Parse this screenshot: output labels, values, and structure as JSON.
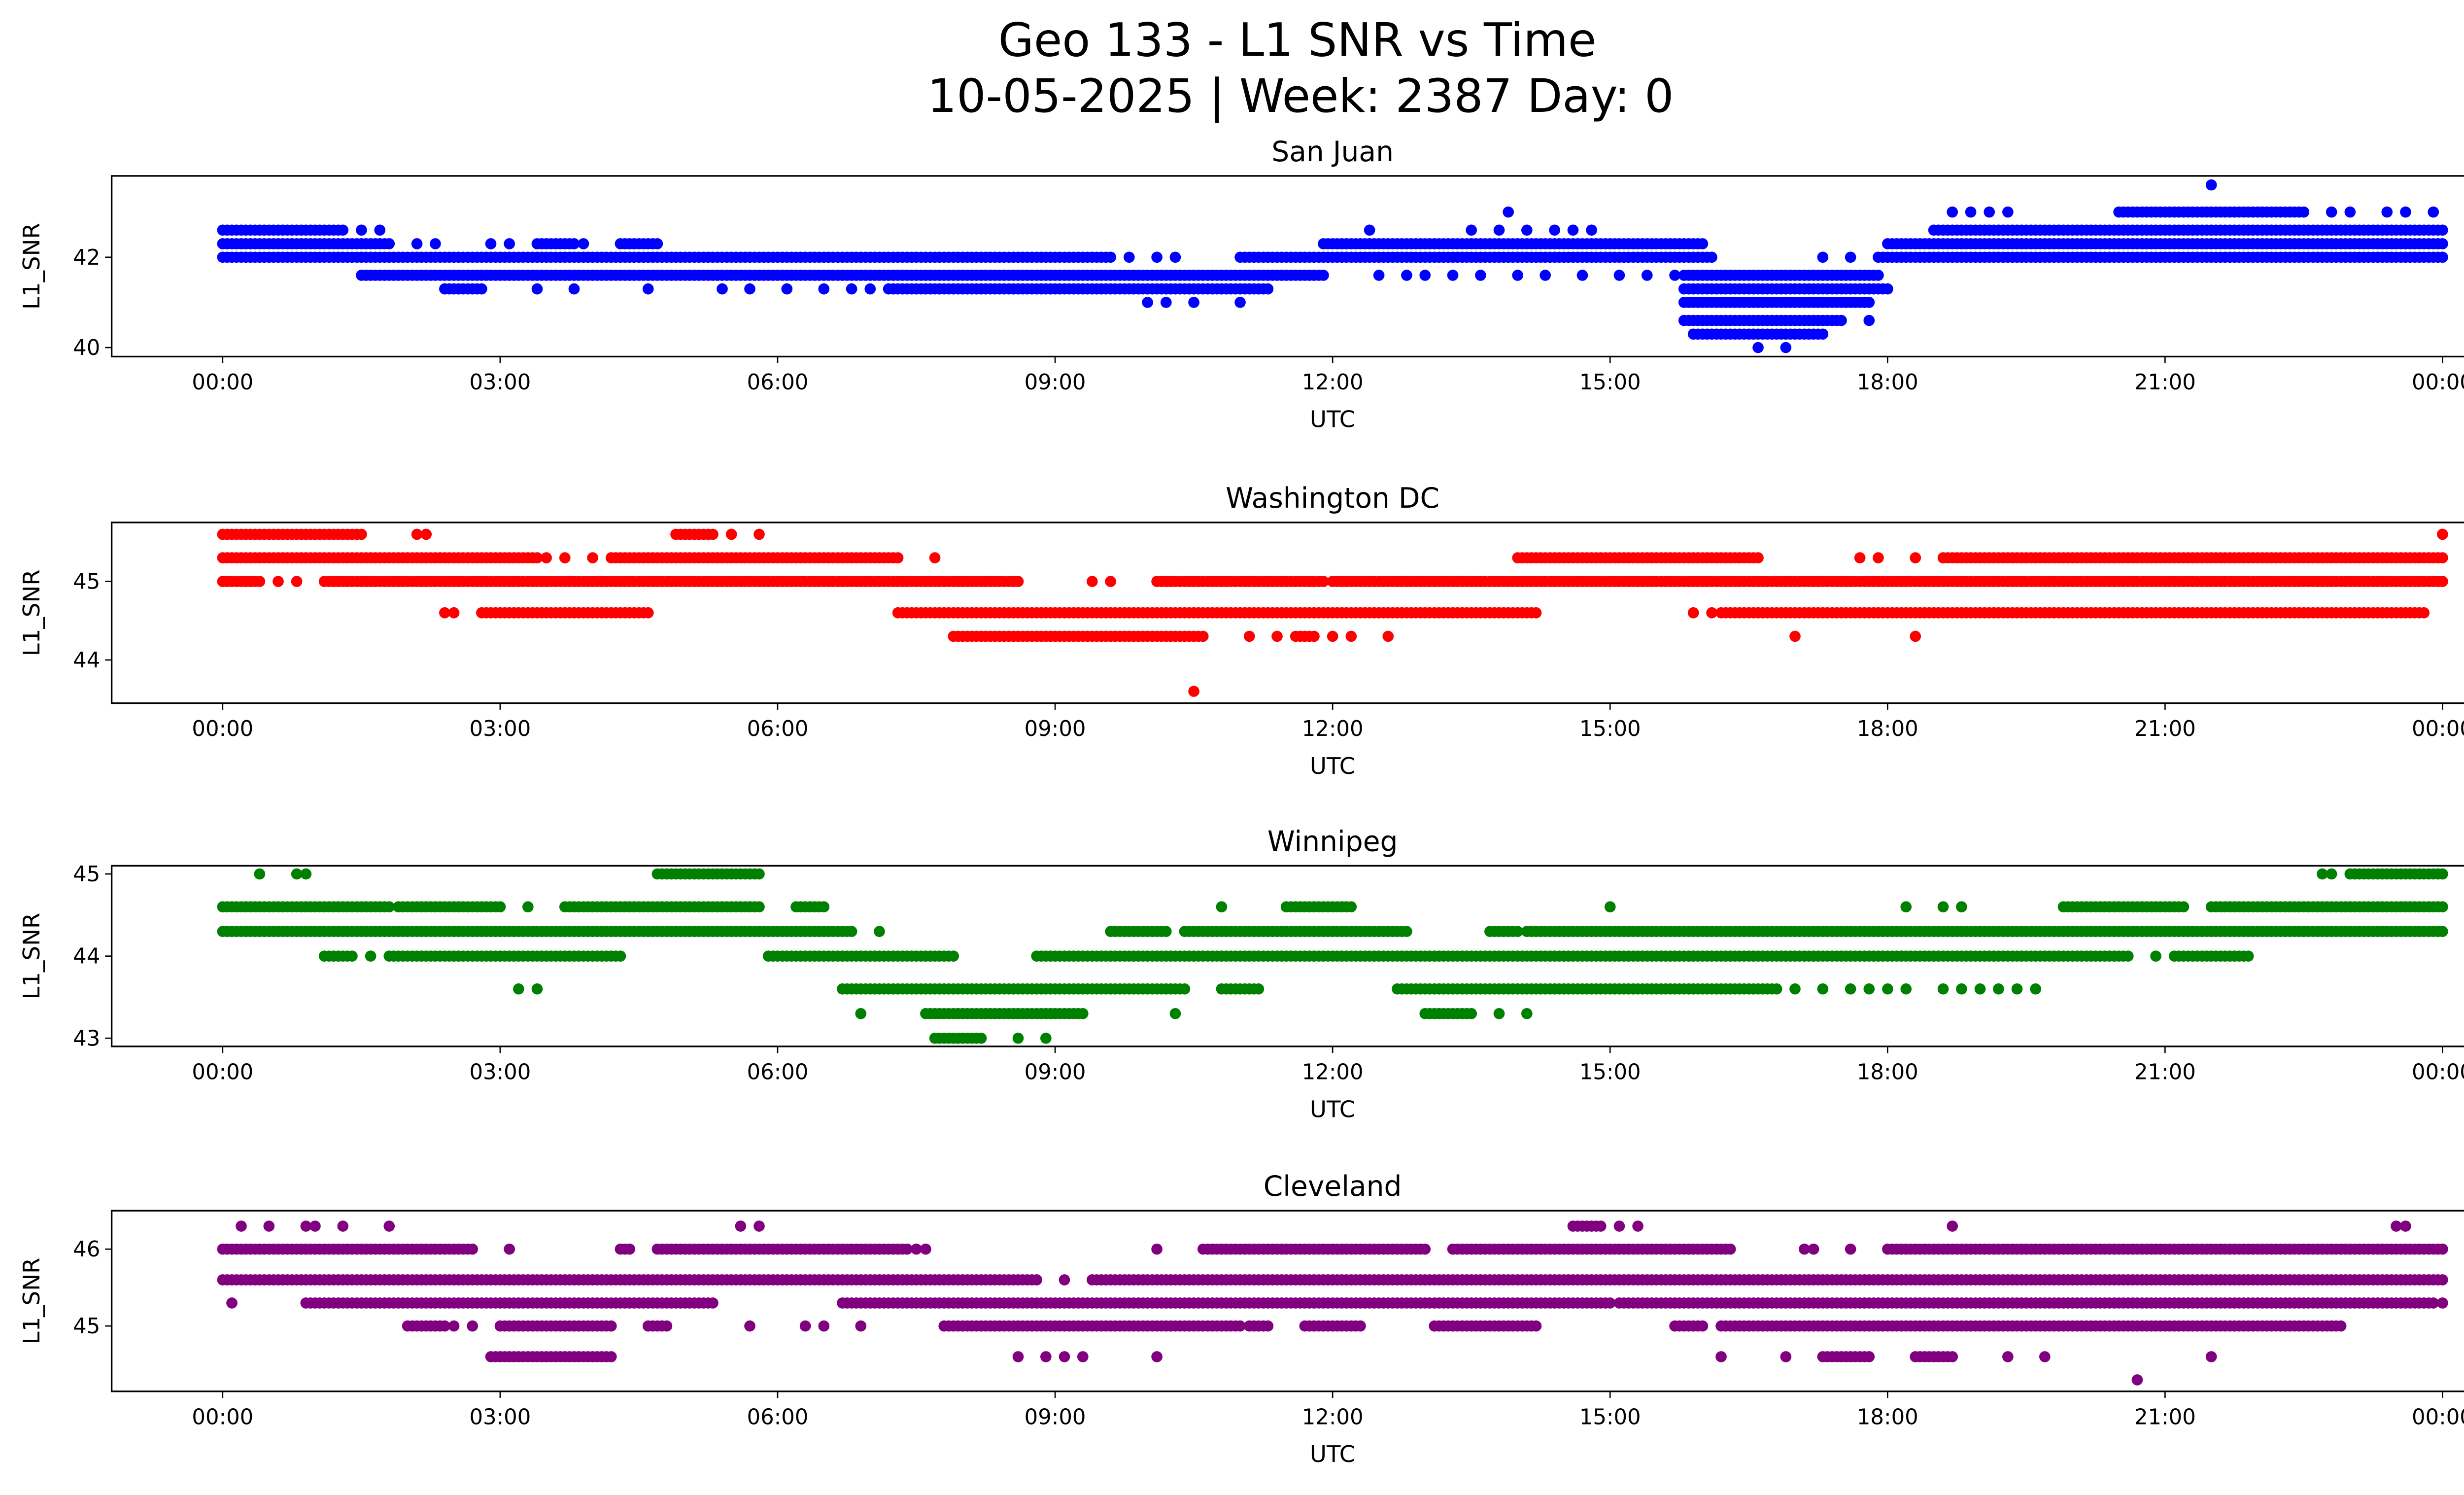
{
  "chart_data": {
    "type": "scatter",
    "title_line1": "Geo 133 - L1 SNR vs Time",
    "title_line2": "10-05-2025 | Week: 2387 Day: 0",
    "xlabel": "UTC",
    "ylabel": "L1_SNR",
    "x_units": "hours since 00:00 UTC",
    "xlim": [
      -1.2,
      25.2
    ],
    "x_ticks": [
      0,
      3,
      6,
      9,
      12,
      15,
      18,
      21,
      24
    ],
    "x_tick_labels": [
      "00:00",
      "03:00",
      "06:00",
      "09:00",
      "12:00",
      "15:00",
      "18:00",
      "21:00",
      "00:00"
    ],
    "subplots": [
      {
        "title": "San Juan",
        "color": "#0000ff",
        "ylim": [
          39.8,
          43.8
        ],
        "y_ticks": [
          40,
          42
        ],
        "y_tick_labels": [
          "40",
          "42"
        ],
        "levels": [
          {
            "y": 43.6,
            "dense": [],
            "points": [
              21.5
            ]
          },
          {
            "y": 43.0,
            "dense": [
              [
                20.5,
                22.5
              ]
            ],
            "points": [
              13.9,
              18.7,
              18.9,
              19.1,
              19.3,
              22.8,
              23.0,
              23.4,
              23.6,
              23.9
            ]
          },
          {
            "y": 42.6,
            "dense": [
              [
                0,
                1.3
              ],
              [
                18.5,
                24
              ]
            ],
            "points": [
              1.5,
              1.7,
              12.4,
              13.5,
              13.8,
              14.1,
              14.4,
              14.6,
              14.8
            ]
          },
          {
            "y": 42.3,
            "dense": [
              [
                0,
                1.8
              ],
              [
                3.4,
                3.8
              ],
              [
                4.3,
                4.7
              ],
              [
                11.9,
                16.0
              ],
              [
                18.0,
                24
              ]
            ],
            "points": [
              2.1,
              2.3,
              2.9,
              3.1,
              3.9
            ]
          },
          {
            "y": 42.0,
            "dense": [
              [
                0,
                9.6
              ],
              [
                11.0,
                16.1
              ],
              [
                17.9,
                24
              ]
            ],
            "points": [
              9.8,
              10.1,
              10.3,
              17.3,
              17.6
            ]
          },
          {
            "y": 41.6,
            "dense": [
              [
                1.5,
                11.9
              ],
              [
                15.8,
                17.9
              ]
            ],
            "points": [
              12.5,
              12.8,
              13.0,
              13.3,
              13.6,
              14.0,
              14.3,
              14.7,
              15.1,
              15.4,
              15.7
            ]
          },
          {
            "y": 41.3,
            "dense": [
              [
                2.4,
                2.8
              ],
              [
                7.2,
                11.3
              ],
              [
                15.8,
                18.0
              ]
            ],
            "points": [
              4.6,
              5.4,
              5.7,
              6.1,
              6.5,
              6.8,
              7.0,
              3.4,
              3.8
            ]
          },
          {
            "y": 41.0,
            "dense": [
              [
                15.8,
                17.8
              ]
            ],
            "points": [
              10.0,
              10.2,
              10.5,
              11.0
            ]
          },
          {
            "y": 40.6,
            "dense": [
              [
                15.8,
                17.5
              ]
            ],
            "points": [
              17.8
            ]
          },
          {
            "y": 40.3,
            "dense": [
              [
                15.9,
                17.3
              ]
            ],
            "points": []
          },
          {
            "y": 40.0,
            "dense": [],
            "points": [
              16.6,
              16.9
            ]
          }
        ]
      },
      {
        "title": "Washington DC",
        "color": "#ff0000",
        "ylim": [
          43.45,
          45.75
        ],
        "y_ticks": [
          44,
          45
        ],
        "y_tick_labels": [
          "44",
          "45"
        ],
        "levels": [
          {
            "y": 45.6,
            "dense": [
              [
                0,
                1.5
              ],
              [
                4.9,
                5.3
              ]
            ],
            "points": [
              2.1,
              2.2,
              5.5,
              5.8,
              24.0
            ]
          },
          {
            "y": 45.3,
            "dense": [
              [
                0,
                3.4
              ],
              [
                4.2,
                7.3
              ],
              [
                14.0,
                16.6
              ],
              [
                18.6,
                24
              ]
            ],
            "points": [
              3.5,
              3.7,
              4.0,
              7.7,
              17.7,
              17.9,
              18.3
            ]
          },
          {
            "y": 45.0,
            "dense": [
              [
                0,
                0.4
              ],
              [
                1.1,
                8.6
              ],
              [
                10.1,
                11.9
              ],
              [
                12.0,
                24
              ]
            ],
            "points": [
              0.6,
              0.8,
              9.4,
              9.6
            ]
          },
          {
            "y": 44.6,
            "dense": [
              [
                2.8,
                4.6
              ],
              [
                7.3,
                14.2
              ],
              [
                16.2,
                23.8
              ]
            ],
            "points": [
              2.4,
              2.5,
              15.9,
              16.1
            ]
          },
          {
            "y": 44.3,
            "dense": [
              [
                7.9,
                10.6
              ],
              [
                11.6,
                11.8
              ]
            ],
            "points": [
              11.1,
              11.4,
              12.0,
              12.2,
              12.6,
              17.0,
              18.3
            ]
          },
          {
            "y": 43.6,
            "dense": [],
            "points": [
              10.5
            ]
          }
        ]
      },
      {
        "title": "Winnipeg",
        "color": "#008000",
        "ylim": [
          42.9,
          45.1
        ],
        "y_ticks": [
          43,
          44,
          45
        ],
        "y_tick_labels": [
          "43",
          "44",
          "45"
        ],
        "levels": [
          {
            "y": 45.0,
            "dense": [
              [
                4.7,
                5.8
              ],
              [
                23.0,
                24
              ]
            ],
            "points": [
              0.4,
              0.8,
              0.9,
              22.7,
              22.8
            ]
          },
          {
            "y": 44.6,
            "dense": [
              [
                0,
                1.8
              ],
              [
                1.9,
                3.0
              ],
              [
                3.7,
                5.8
              ],
              [
                6.2,
                6.5
              ],
              [
                11.5,
                12.2
              ],
              [
                19.9,
                21.2
              ],
              [
                21.5,
                24
              ]
            ],
            "points": [
              3.3,
              10.8,
              15.0,
              18.2,
              18.6,
              18.8
            ]
          },
          {
            "y": 44.3,
            "dense": [
              [
                0,
                6.8
              ],
              [
                9.6,
                10.2
              ],
              [
                10.4,
                12.8
              ],
              [
                13.7,
                14.0
              ],
              [
                14.1,
                24
              ]
            ],
            "points": [
              7.1
            ]
          },
          {
            "y": 44.0,
            "dense": [
              [
                1.1,
                1.4
              ],
              [
                1.8,
                4.3
              ],
              [
                5.9,
                7.9
              ],
              [
                8.8,
                20.6
              ],
              [
                21.1,
                21.9
              ]
            ],
            "points": [
              1.6,
              20.9
            ]
          },
          {
            "y": 43.6,
            "dense": [
              [
                6.7,
                10.4
              ],
              [
                10.8,
                11.2
              ],
              [
                12.7,
                16.8
              ]
            ],
            "points": [
              3.2,
              3.4,
              17.0,
              17.3,
              17.6,
              17.8,
              18.0,
              18.2,
              18.6,
              18.8,
              19.0,
              19.2,
              19.4,
              19.6
            ]
          },
          {
            "y": 43.3,
            "dense": [
              [
                7.6,
                9.3
              ],
              [
                13.0,
                13.5
              ]
            ],
            "points": [
              6.9,
              10.3,
              13.8,
              14.1
            ]
          },
          {
            "y": 43.0,
            "dense": [
              [
                7.7,
                8.2
              ]
            ],
            "points": [
              8.6,
              8.9
            ]
          }
        ]
      },
      {
        "title": "Cleveland",
        "color": "#800080",
        "ylim": [
          44.15,
          46.5
        ],
        "y_ticks": [
          45,
          46
        ],
        "y_tick_labels": [
          "45",
          "46"
        ],
        "levels": [
          {
            "y": 46.3,
            "dense": [
              [
                14.6,
                14.9
              ]
            ],
            "points": [
              0.2,
              0.5,
              0.9,
              1.0,
              1.3,
              1.8,
              5.6,
              5.8,
              15.1,
              15.3,
              18.7,
              23.5,
              23.6
            ]
          },
          {
            "y": 46.0,
            "dense": [
              [
                0,
                2.7
              ],
              [
                4.3,
                4.4
              ],
              [
                4.7,
                7.4
              ],
              [
                10.6,
                13.0
              ],
              [
                13.3,
                16.3
              ],
              [
                18.0,
                24
              ]
            ],
            "points": [
              3.1,
              7.5,
              7.6,
              10.1,
              17.1,
              17.2,
              17.6
            ]
          },
          {
            "y": 45.6,
            "dense": [
              [
                0,
                8.8
              ],
              [
                9.4,
                24
              ]
            ],
            "points": [
              9.1
            ]
          },
          {
            "y": 45.3,
            "dense": [
              [
                0.9,
                5.3
              ],
              [
                6.7,
                15.0
              ],
              [
                15.1,
                23.9
              ]
            ],
            "points": [
              0.1,
              24.0
            ]
          },
          {
            "y": 45.0,
            "dense": [
              [
                2.0,
                2.4
              ],
              [
                3.0,
                4.2
              ],
              [
                4.6,
                4.8
              ],
              [
                7.8,
                11.0
              ],
              [
                11.1,
                11.3
              ],
              [
                11.7,
                12.3
              ],
              [
                13.1,
                14.2
              ],
              [
                15.7,
                16.0
              ],
              [
                16.2,
                22.9
              ]
            ],
            "points": [
              2.5,
              2.7,
              5.7,
              6.3,
              6.5,
              6.9
            ]
          },
          {
            "y": 44.6,
            "dense": [
              [
                2.9,
                4.2
              ],
              [
                17.3,
                17.8
              ],
              [
                18.3,
                18.7
              ]
            ],
            "points": [
              8.6,
              8.9,
              9.1,
              9.3,
              10.1,
              16.2,
              16.9,
              19.3,
              19.7,
              21.5
            ]
          },
          {
            "y": 44.3,
            "dense": [],
            "points": [
              20.7
            ]
          }
        ]
      }
    ]
  }
}
